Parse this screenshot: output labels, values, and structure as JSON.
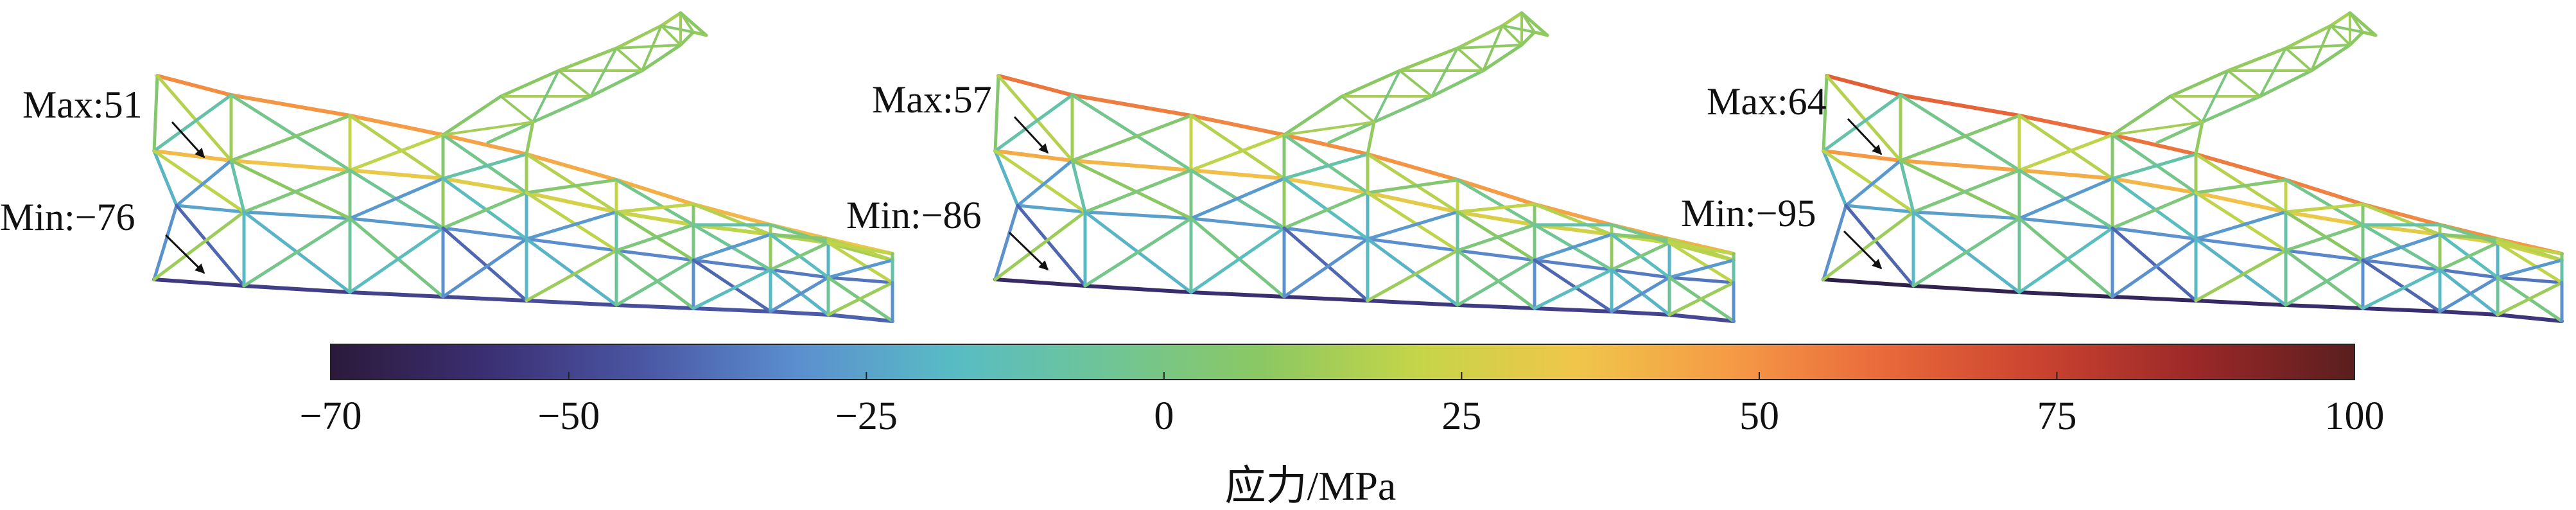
{
  "panels": [
    {
      "max_label": "Max:51",
      "min_label": "Min:−76",
      "max": 51,
      "min": -76
    },
    {
      "max_label": "Max:57",
      "min_label": "Min:−86",
      "max": 57,
      "min": -86
    },
    {
      "max_label": "Max:64",
      "min_label": "Min:−95",
      "max": 64,
      "min": -95
    }
  ],
  "colorbar": {
    "min": -70,
    "max": 100,
    "ticks": [
      {
        "value": -70,
        "label": "−70"
      },
      {
        "value": -50,
        "label": "−50"
      },
      {
        "value": -25,
        "label": "−25"
      },
      {
        "value": 0,
        "label": "0"
      },
      {
        "value": 25,
        "label": "25"
      },
      {
        "value": 50,
        "label": "50"
      },
      {
        "value": 75,
        "label": "75"
      },
      {
        "value": 100,
        "label": "100"
      }
    ],
    "title": "应力/MPa",
    "stops": [
      "#2b1a3a",
      "#3b2f73",
      "#4a56a3",
      "#5b8fcf",
      "#58bcc4",
      "#6fc596",
      "#8cc862",
      "#c6d548",
      "#f0c64a",
      "#f59a45",
      "#e9683a",
      "#c9422f",
      "#9a2828",
      "#5a1e1e"
    ]
  }
}
